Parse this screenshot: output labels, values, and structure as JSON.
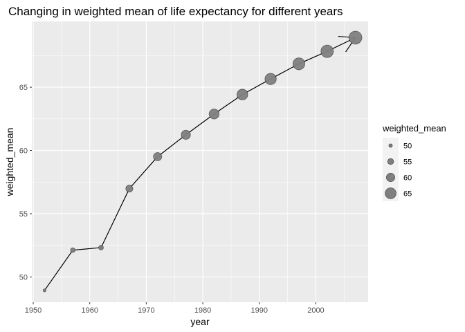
{
  "chart_data": {
    "type": "line",
    "title": "Changing in weighted mean of life expectancy for different years",
    "xlabel": "year",
    "ylabel": "weighted_mean",
    "xlim": [
      1949.75,
      2009.25
    ],
    "ylim": [
      48.0,
      70.2
    ],
    "xticks": [
      1950,
      1960,
      1970,
      1980,
      1990,
      2000
    ],
    "yticks": [
      50,
      55,
      60,
      65
    ],
    "grid": true,
    "x": [
      1952,
      1957,
      1962,
      1967,
      1972,
      1977,
      1982,
      1987,
      1992,
      1997,
      2002,
      2007
    ],
    "series": [
      {
        "values": [
          48.94,
          52.12,
          52.32,
          56.98,
          59.51,
          61.24,
          62.88,
          64.42,
          65.65,
          66.85,
          67.84,
          68.92
        ]
      }
    ],
    "size_mapped_to": "weighted_mean",
    "arrow_at_end": true,
    "legend": {
      "title": "weighted_mean",
      "position": "right",
      "entries": [
        {
          "label": "50",
          "value": 50
        },
        {
          "label": "55",
          "value": 55
        },
        {
          "label": "60",
          "value": 60
        },
        {
          "label": "65",
          "value": 65
        }
      ]
    },
    "colors": {
      "panel": "#ebebeb",
      "grid": "#ffffff",
      "line": "#000000",
      "point": "#7f7f7f",
      "legend_key_bg": "#f2f2f2"
    }
  }
}
